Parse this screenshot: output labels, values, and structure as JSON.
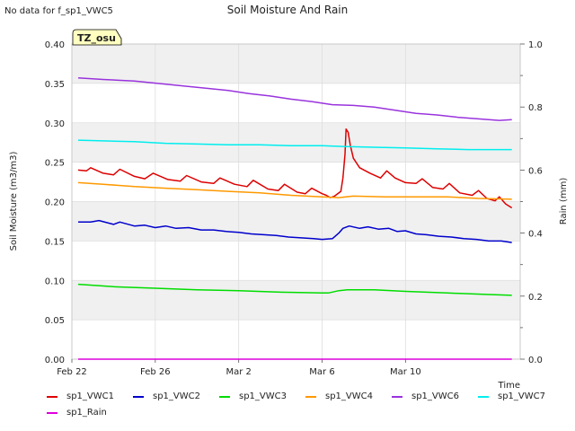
{
  "nodata_text": "No data for f_sp1_VWC5",
  "chart_data": {
    "type": "line",
    "title": "Soil Moisture And Rain",
    "xlabel": "Time",
    "ylabel": "Soil Moisture (m3/m3)",
    "y2label": "Rain (mm)",
    "site_badge": "TZ_osu",
    "ylim": [
      0.0,
      0.4
    ],
    "y2lim": [
      0.0,
      1.0
    ],
    "xlim": [
      0,
      21.5
    ],
    "yticks": [
      "0.00",
      "0.05",
      "0.10",
      "0.15",
      "0.20",
      "0.25",
      "0.30",
      "0.35",
      "0.40"
    ],
    "y2ticks": [
      "0.0",
      "0.2",
      "0.4",
      "0.6",
      "0.8",
      "1.0"
    ],
    "xticks": [
      {
        "label": "Feb 22",
        "x": 0
      },
      {
        "label": "Feb 26",
        "x": 4
      },
      {
        "label": "Mar 2",
        "x": 8
      },
      {
        "label": "Mar 6",
        "x": 12
      },
      {
        "label": "Mar 10",
        "x": 16
      }
    ],
    "grid": true,
    "legend_position": "bottom",
    "series": [
      {
        "name": "sp1_VWC1",
        "color": "#dd0000",
        "axis": "left",
        "points": [
          [
            0.3,
            0.24
          ],
          [
            0.7,
            0.239
          ],
          [
            0.9,
            0.243
          ],
          [
            1.5,
            0.236
          ],
          [
            2.0,
            0.234
          ],
          [
            2.3,
            0.241
          ],
          [
            3.0,
            0.232
          ],
          [
            3.5,
            0.229
          ],
          [
            3.9,
            0.236
          ],
          [
            4.6,
            0.228
          ],
          [
            5.2,
            0.226
          ],
          [
            5.5,
            0.233
          ],
          [
            6.2,
            0.225
          ],
          [
            6.8,
            0.223
          ],
          [
            7.1,
            0.23
          ],
          [
            7.8,
            0.222
          ],
          [
            8.4,
            0.219
          ],
          [
            8.7,
            0.227
          ],
          [
            9.4,
            0.216
          ],
          [
            9.9,
            0.214
          ],
          [
            10.2,
            0.222
          ],
          [
            10.8,
            0.212
          ],
          [
            11.2,
            0.21
          ],
          [
            11.5,
            0.217
          ],
          [
            12.0,
            0.21
          ],
          [
            12.2,
            0.208
          ],
          [
            12.4,
            0.205
          ],
          [
            12.6,
            0.207
          ],
          [
            12.9,
            0.213
          ],
          [
            13.0,
            0.23
          ],
          [
            13.1,
            0.26
          ],
          [
            13.15,
            0.292
          ],
          [
            13.25,
            0.288
          ],
          [
            13.35,
            0.272
          ],
          [
            13.5,
            0.255
          ],
          [
            13.8,
            0.243
          ],
          [
            14.3,
            0.236
          ],
          [
            14.8,
            0.23
          ],
          [
            15.1,
            0.239
          ],
          [
            15.5,
            0.23
          ],
          [
            16.0,
            0.224
          ],
          [
            16.5,
            0.223
          ],
          [
            16.8,
            0.229
          ],
          [
            17.3,
            0.218
          ],
          [
            17.8,
            0.216
          ],
          [
            18.1,
            0.223
          ],
          [
            18.6,
            0.211
          ],
          [
            19.2,
            0.208
          ],
          [
            19.5,
            0.214
          ],
          [
            19.9,
            0.204
          ],
          [
            20.3,
            0.201
          ],
          [
            20.5,
            0.206
          ],
          [
            20.8,
            0.197
          ],
          [
            21.1,
            0.192
          ]
        ]
      },
      {
        "name": "sp1_VWC2",
        "color": "#0000cc",
        "axis": "left",
        "points": [
          [
            0.3,
            0.174
          ],
          [
            0.9,
            0.174
          ],
          [
            1.3,
            0.176
          ],
          [
            2.0,
            0.171
          ],
          [
            2.3,
            0.174
          ],
          [
            3.0,
            0.169
          ],
          [
            3.5,
            0.17
          ],
          [
            4.0,
            0.167
          ],
          [
            4.5,
            0.169
          ],
          [
            5.0,
            0.166
          ],
          [
            5.6,
            0.167
          ],
          [
            6.2,
            0.164
          ],
          [
            6.8,
            0.164
          ],
          [
            7.4,
            0.162
          ],
          [
            8.0,
            0.161
          ],
          [
            8.6,
            0.159
          ],
          [
            9.2,
            0.158
          ],
          [
            9.8,
            0.157
          ],
          [
            10.4,
            0.155
          ],
          [
            11.0,
            0.154
          ],
          [
            11.6,
            0.153
          ],
          [
            12.0,
            0.152
          ],
          [
            12.5,
            0.153
          ],
          [
            12.8,
            0.16
          ],
          [
            13.0,
            0.166
          ],
          [
            13.3,
            0.169
          ],
          [
            13.8,
            0.166
          ],
          [
            14.2,
            0.168
          ],
          [
            14.7,
            0.165
          ],
          [
            15.2,
            0.166
          ],
          [
            15.6,
            0.162
          ],
          [
            16.0,
            0.163
          ],
          [
            16.5,
            0.159
          ],
          [
            17.0,
            0.158
          ],
          [
            17.6,
            0.156
          ],
          [
            18.2,
            0.155
          ],
          [
            18.8,
            0.153
          ],
          [
            19.4,
            0.152
          ],
          [
            20.0,
            0.15
          ],
          [
            20.6,
            0.15
          ],
          [
            21.1,
            0.148
          ]
        ]
      },
      {
        "name": "sp1_VWC3",
        "color": "#00dd00",
        "axis": "left",
        "points": [
          [
            0.3,
            0.095
          ],
          [
            2.0,
            0.092
          ],
          [
            4.0,
            0.09
          ],
          [
            6.0,
            0.088
          ],
          [
            8.0,
            0.087
          ],
          [
            10.0,
            0.085
          ],
          [
            12.0,
            0.084
          ],
          [
            12.3,
            0.084
          ],
          [
            12.8,
            0.087
          ],
          [
            13.2,
            0.088
          ],
          [
            14.5,
            0.088
          ],
          [
            16.0,
            0.086
          ],
          [
            18.0,
            0.084
          ],
          [
            20.0,
            0.082
          ],
          [
            21.1,
            0.081
          ]
        ]
      },
      {
        "name": "sp1_VWC4",
        "color": "#ff9900",
        "axis": "left",
        "points": [
          [
            0.3,
            0.224
          ],
          [
            1.5,
            0.222
          ],
          [
            3.0,
            0.219
          ],
          [
            4.5,
            0.217
          ],
          [
            6.0,
            0.215
          ],
          [
            7.5,
            0.213
          ],
          [
            9.0,
            0.211
          ],
          [
            10.5,
            0.208
          ],
          [
            12.0,
            0.206
          ],
          [
            12.8,
            0.205
          ],
          [
            13.5,
            0.207
          ],
          [
            15.0,
            0.206
          ],
          [
            16.5,
            0.206
          ],
          [
            18.0,
            0.206
          ],
          [
            19.5,
            0.204
          ],
          [
            21.1,
            0.203
          ]
        ]
      },
      {
        "name": "sp1_VWC6",
        "color": "#9933dd",
        "axis": "left",
        "points": [
          [
            0.3,
            0.357
          ],
          [
            1.5,
            0.355
          ],
          [
            3.0,
            0.353
          ],
          [
            4.5,
            0.349
          ],
          [
            6.0,
            0.345
          ],
          [
            7.5,
            0.341
          ],
          [
            8.5,
            0.337
          ],
          [
            9.5,
            0.334
          ],
          [
            10.5,
            0.33
          ],
          [
            11.5,
            0.327
          ],
          [
            12.5,
            0.323
          ],
          [
            13.5,
            0.322
          ],
          [
            14.5,
            0.32
          ],
          [
            15.5,
            0.316
          ],
          [
            16.5,
            0.312
          ],
          [
            17.5,
            0.31
          ],
          [
            18.5,
            0.307
          ],
          [
            19.5,
            0.305
          ],
          [
            20.5,
            0.303
          ],
          [
            21.1,
            0.304
          ]
        ]
      },
      {
        "name": "sp1_VWC7",
        "color": "#00eeee",
        "axis": "left",
        "points": [
          [
            0.3,
            0.278
          ],
          [
            1.5,
            0.277
          ],
          [
            3.0,
            0.276
          ],
          [
            4.5,
            0.274
          ],
          [
            6.0,
            0.273
          ],
          [
            7.5,
            0.272
          ],
          [
            9.0,
            0.272
          ],
          [
            10.5,
            0.271
          ],
          [
            12.0,
            0.271
          ],
          [
            13.0,
            0.27
          ],
          [
            14.5,
            0.269
          ],
          [
            16.0,
            0.268
          ],
          [
            17.5,
            0.267
          ],
          [
            19.0,
            0.266
          ],
          [
            21.1,
            0.266
          ]
        ]
      },
      {
        "name": "sp1_Rain",
        "color": "#dd00dd",
        "axis": "right",
        "points": [
          [
            0.3,
            0.0
          ],
          [
            21.1,
            0.0
          ]
        ]
      }
    ]
  }
}
